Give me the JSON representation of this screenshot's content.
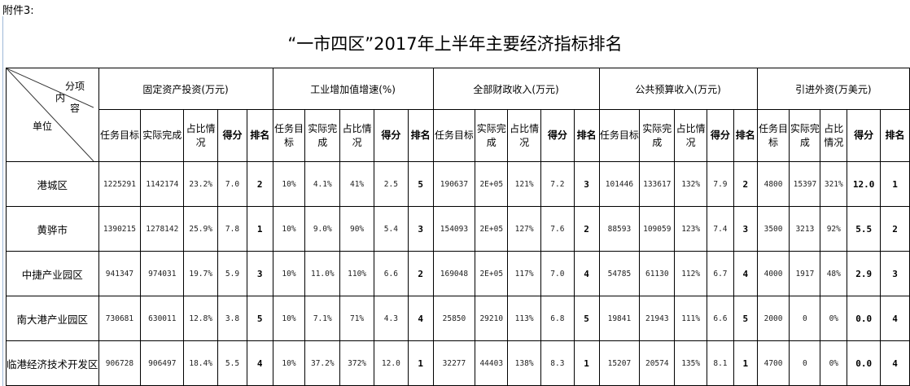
{
  "attachment_label": "附件3:",
  "title": "“一市四区”2017年上半年主要经济指标排名",
  "corner": {
    "item": "分项",
    "content1": "内",
    "content2": "容",
    "unit": "单位"
  },
  "groups": [
    "固定资产投资(万元)",
    "工业增加值增速(%)",
    "全部财政收入(万元)",
    "公共预算收入(万元)",
    "引进外资(万美元)"
  ],
  "subheaders": [
    "任务目标",
    "实际完成",
    "占比情况",
    "得分",
    "排名"
  ],
  "rows": [
    {
      "unit": "港城区",
      "values": [
        [
          "1225291",
          "1142174",
          "23.2%",
          "7.0",
          "2"
        ],
        [
          "10%",
          "4.1%",
          "41%",
          "2.5",
          "5"
        ],
        [
          "190637",
          "2E+05",
          "121%",
          "7.2",
          "3"
        ],
        [
          "101446",
          "133617",
          "132%",
          "7.9",
          "2"
        ],
        [
          "4800",
          "15397",
          "321%",
          "12.0",
          "1"
        ]
      ]
    },
    {
      "unit": "黄骅市",
      "values": [
        [
          "1390215",
          "1278142",
          "25.9%",
          "7.8",
          "1"
        ],
        [
          "10%",
          "9.0%",
          "90%",
          "5.4",
          "3"
        ],
        [
          "154093",
          "2E+05",
          "127%",
          "7.6",
          "2"
        ],
        [
          "88593",
          "109059",
          "123%",
          "7.4",
          "3"
        ],
        [
          "3500",
          "3213",
          "92%",
          "5.5",
          "2"
        ]
      ]
    },
    {
      "unit": "中捷产业园区",
      "values": [
        [
          "941347",
          "974031",
          "19.7%",
          "5.9",
          "3"
        ],
        [
          "10%",
          "11.0%",
          "110%",
          "6.6",
          "2"
        ],
        [
          "169048",
          "2E+05",
          "117%",
          "7.0",
          "4"
        ],
        [
          "54785",
          "61130",
          "112%",
          "6.7",
          "4"
        ],
        [
          "4000",
          "1917",
          "48%",
          "2.9",
          "3"
        ]
      ]
    },
    {
      "unit": "南大港产业园区",
      "values": [
        [
          "730681",
          "630011",
          "12.8%",
          "3.8",
          "5"
        ],
        [
          "10%",
          "7.1%",
          "71%",
          "4.3",
          "4"
        ],
        [
          "25850",
          "29210",
          "113%",
          "6.8",
          "5"
        ],
        [
          "19841",
          "21943",
          "111%",
          "6.6",
          "5"
        ],
        [
          "2000",
          "0",
          "0%",
          "0.0",
          "4"
        ]
      ]
    },
    {
      "unit": "临港经济技术开发区",
      "values": [
        [
          "906728",
          "906497",
          "18.4%",
          "5.5",
          "4"
        ],
        [
          "10%",
          "37.2%",
          "372%",
          "12.0",
          "1"
        ],
        [
          "32277",
          "44403",
          "138%",
          "8.3",
          "1"
        ],
        [
          "15207",
          "20574",
          "135%",
          "8.1",
          "1"
        ],
        [
          "4700",
          "0",
          "0%",
          "0.0",
          "4"
        ]
      ]
    }
  ]
}
